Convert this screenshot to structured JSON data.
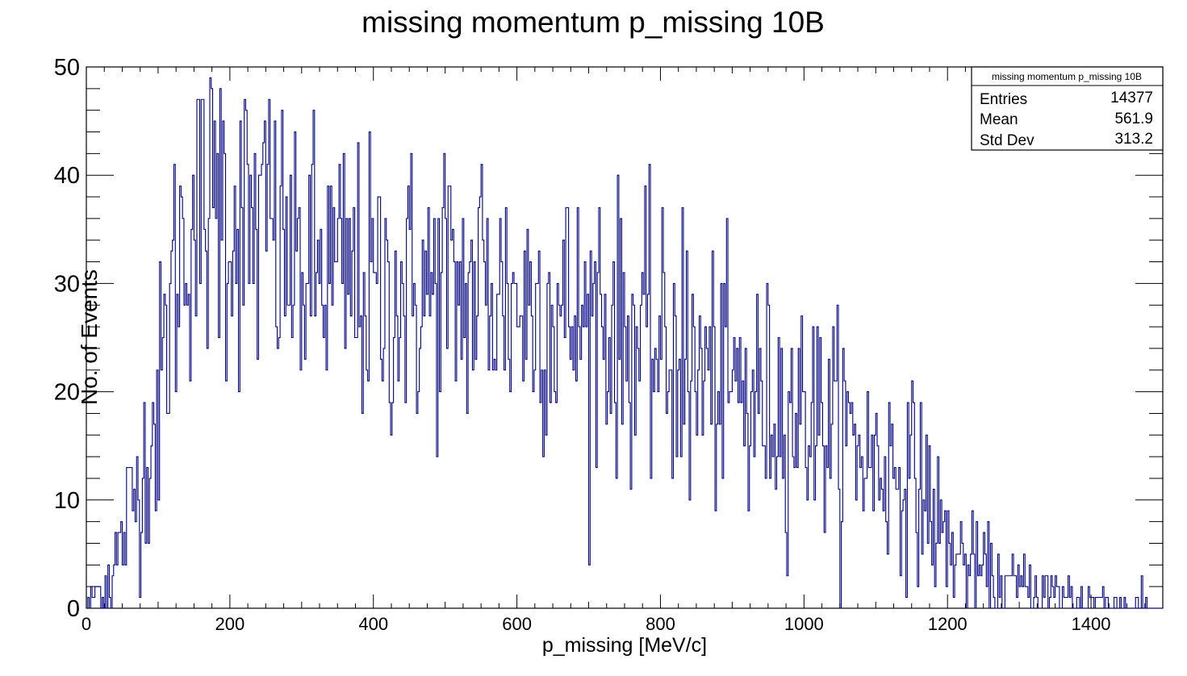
{
  "chart_data": {
    "type": "bar",
    "title": "missing momentum p_missing 10B",
    "xlabel": "p_missing [MeV/c]",
    "ylabel": "No. of Events",
    "xlim": [
      0,
      1500
    ],
    "ylim": [
      0,
      50
    ],
    "x_ticks": [
      "0",
      "200",
      "400",
      "600",
      "800",
      "1000",
      "1200",
      "1400"
    ],
    "y_ticks": [
      "0",
      "10",
      "20",
      "30",
      "40",
      "50"
    ],
    "bin_width": 2,
    "line_color": "#000080",
    "stats": {
      "title": "missing momentum p_missing 10B",
      "rows": [
        {
          "label": "Entries",
          "value": "14377"
        },
        {
          "label": "Mean",
          "value": "561.9"
        },
        {
          "label": "Std Dev",
          "value": "313.2"
        }
      ]
    },
    "envelope": [
      [
        0,
        0
      ],
      [
        10,
        1
      ],
      [
        20,
        2
      ],
      [
        30,
        3
      ],
      [
        40,
        4
      ],
      [
        50,
        6
      ],
      [
        60,
        9
      ],
      [
        70,
        11
      ],
      [
        80,
        13
      ],
      [
        90,
        16
      ],
      [
        100,
        19
      ],
      [
        110,
        24
      ],
      [
        120,
        29
      ],
      [
        130,
        33
      ],
      [
        140,
        35
      ],
      [
        150,
        36
      ],
      [
        160,
        36
      ],
      [
        175,
        37
      ],
      [
        190,
        37
      ],
      [
        210,
        36
      ],
      [
        230,
        35
      ],
      [
        250,
        34
      ],
      [
        270,
        33
      ],
      [
        290,
        32
      ],
      [
        310,
        31
      ],
      [
        340,
        31
      ],
      [
        370,
        30
      ],
      [
        400,
        29
      ],
      [
        430,
        29
      ],
      [
        460,
        29
      ],
      [
        490,
        29
      ],
      [
        520,
        29
      ],
      [
        550,
        29
      ],
      [
        580,
        29
      ],
      [
        610,
        28
      ],
      [
        640,
        28
      ],
      [
        670,
        27
      ],
      [
        700,
        26
      ],
      [
        730,
        26
      ],
      [
        760,
        25
      ],
      [
        790,
        24
      ],
      [
        820,
        23
      ],
      [
        850,
        22
      ],
      [
        880,
        21
      ],
      [
        910,
        20
      ],
      [
        940,
        19
      ],
      [
        970,
        19
      ],
      [
        1000,
        18
      ],
      [
        1030,
        17
      ],
      [
        1060,
        16
      ],
      [
        1090,
        14
      ],
      [
        1120,
        13
      ],
      [
        1150,
        12
      ],
      [
        1170,
        10
      ],
      [
        1190,
        7
      ],
      [
        1210,
        5
      ],
      [
        1230,
        4
      ],
      [
        1250,
        3
      ],
      [
        1270,
        2.5
      ],
      [
        1290,
        2
      ],
      [
        1310,
        1.8
      ],
      [
        1330,
        1.5
      ],
      [
        1350,
        1.2
      ],
      [
        1370,
        1
      ],
      [
        1400,
        0.8
      ],
      [
        1430,
        0.5
      ],
      [
        1470,
        0.3
      ],
      [
        1500,
        0.2
      ]
    ],
    "spikes": [
      [
        186,
        48
      ],
      [
        254,
        47
      ],
      [
        290,
        44
      ],
      [
        498,
        42
      ],
      [
        550,
        41
      ],
      [
        714,
        37
      ],
      [
        830,
        37
      ],
      [
        1012,
        26
      ],
      [
        1162,
        19
      ],
      [
        100,
        10
      ],
      [
        840,
        10
      ],
      [
        922,
        9
      ]
    ]
  }
}
